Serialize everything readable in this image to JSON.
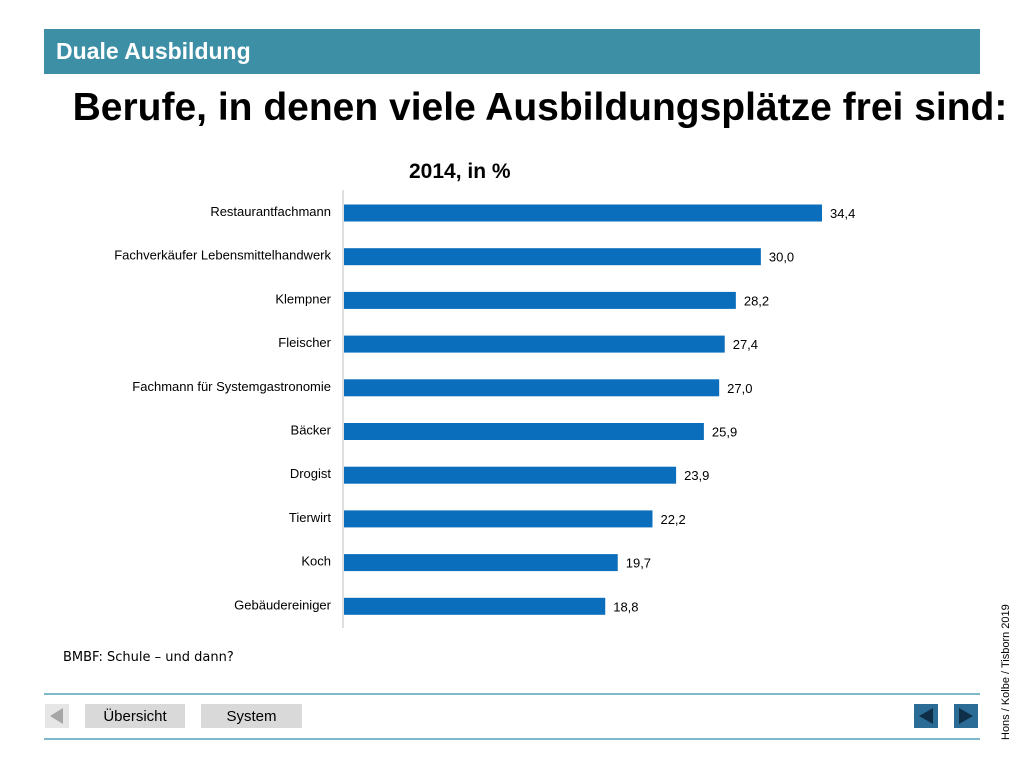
{
  "header": {
    "title": "Duale Ausbildung"
  },
  "slide": {
    "title": "Berufe, in denen viele Ausbildungsplätze frei sind:",
    "subtitle": "2014, in %"
  },
  "chart_data": {
    "type": "bar",
    "orientation": "horizontal",
    "categories": [
      "Restaurantfachmann",
      "Fachverkäufer Lebensmittelhandwerk",
      "Klempner",
      "Fleischer",
      "Fachmann für Systemgastronomie",
      "Bäcker",
      "Drogist",
      "Tierwirt",
      "Koch",
      "Gebäudereiniger"
    ],
    "values": [
      34.4,
      30.0,
      28.2,
      27.4,
      27.0,
      25.9,
      23.9,
      22.2,
      19.7,
      18.8
    ],
    "value_labels": [
      "34,4",
      "30,0",
      "28,2",
      "27,4",
      "27,0",
      "25,9",
      "23,9",
      "22,2",
      "19,7",
      "18,8"
    ],
    "title": "2014, in %",
    "xlabel": "",
    "ylabel": "",
    "xlim": [
      0,
      40
    ],
    "grid": false,
    "bar_color": "#0a6ebd"
  },
  "source": "BMBF: Schule – und dann?",
  "credit": "Hons / Kolbe / Tisborn 2019",
  "footer": {
    "overview_label": "Übersicht",
    "system_label": "System"
  },
  "colors": {
    "header_bg": "#3d8fa6",
    "rule": "#7fb8c8",
    "nav_arrow": "#1f5f8b"
  },
  "icons": {
    "back_gray": "triangle-left-gray-icon",
    "prev": "triangle-left-icon",
    "next": "triangle-right-icon"
  }
}
